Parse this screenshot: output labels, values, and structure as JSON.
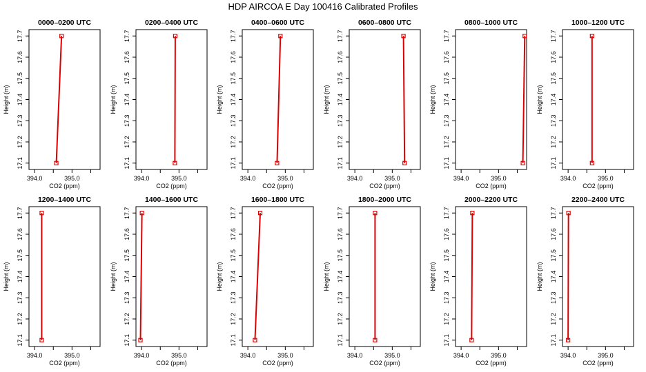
{
  "figure": {
    "title": "HDP AIRCOA E  Day 100416  Calibrated Profiles"
  },
  "colors": {
    "line": "#dd0000",
    "marker": "#dd0000",
    "axis": "#000000"
  },
  "chart_data": [
    {
      "type": "line",
      "title": "0000–0200 UTC",
      "xlabel": "CO2 (ppm)",
      "ylabel": "Height (m)",
      "xlim": [
        393.85,
        395.75
      ],
      "ylim": [
        17.07,
        17.73
      ],
      "xticks": [
        {
          "value": 394.0,
          "label": "394.0"
        },
        {
          "value": 394.5,
          "label": ""
        },
        {
          "value": 395.0,
          "label": "395.0"
        },
        {
          "value": 395.5,
          "label": ""
        }
      ],
      "yticks": [
        {
          "value": 17.1,
          "label": "17.1"
        },
        {
          "value": 17.2,
          "label": "17.2"
        },
        {
          "value": 17.3,
          "label": "17.3"
        },
        {
          "value": 17.4,
          "label": "17.4"
        },
        {
          "value": 17.5,
          "label": "17.5"
        },
        {
          "value": 17.6,
          "label": "17.6"
        },
        {
          "value": 17.7,
          "label": "17.7"
        }
      ],
      "series": [
        {
          "x": [
            394.58,
            394.72
          ],
          "y": [
            17.1,
            17.7
          ]
        }
      ]
    },
    {
      "type": "line",
      "title": "0200–0400 UTC",
      "xlabel": "CO2 (ppm)",
      "ylabel": "Height (m)",
      "xlim": [
        393.85,
        395.75
      ],
      "ylim": [
        17.07,
        17.73
      ],
      "xticks": [
        {
          "value": 394.0,
          "label": "394.0"
        },
        {
          "value": 394.5,
          "label": ""
        },
        {
          "value": 395.0,
          "label": "395.0"
        },
        {
          "value": 395.5,
          "label": ""
        }
      ],
      "yticks": [
        {
          "value": 17.1,
          "label": "17.1"
        },
        {
          "value": 17.2,
          "label": "17.2"
        },
        {
          "value": 17.3,
          "label": "17.3"
        },
        {
          "value": 17.4,
          "label": "17.4"
        },
        {
          "value": 17.5,
          "label": "17.5"
        },
        {
          "value": 17.6,
          "label": "17.6"
        },
        {
          "value": 17.7,
          "label": "17.7"
        }
      ],
      "series": [
        {
          "x": [
            394.89,
            394.9
          ],
          "y": [
            17.1,
            17.7
          ]
        }
      ]
    },
    {
      "type": "line",
      "title": "0400–0600 UTC",
      "xlabel": "CO2 (ppm)",
      "ylabel": "Height (m)",
      "xlim": [
        393.85,
        395.75
      ],
      "ylim": [
        17.07,
        17.73
      ],
      "xticks": [
        {
          "value": 394.0,
          "label": "394.0"
        },
        {
          "value": 394.5,
          "label": ""
        },
        {
          "value": 395.0,
          "label": "395.0"
        },
        {
          "value": 395.5,
          "label": ""
        }
      ],
      "yticks": [
        {
          "value": 17.1,
          "label": "17.1"
        },
        {
          "value": 17.2,
          "label": "17.2"
        },
        {
          "value": 17.3,
          "label": "17.3"
        },
        {
          "value": 17.4,
          "label": "17.4"
        },
        {
          "value": 17.5,
          "label": "17.5"
        },
        {
          "value": 17.6,
          "label": "17.6"
        },
        {
          "value": 17.7,
          "label": "17.7"
        }
      ],
      "series": [
        {
          "x": [
            394.78,
            394.87
          ],
          "y": [
            17.1,
            17.7
          ]
        }
      ]
    },
    {
      "type": "line",
      "title": "0600–0800 UTC",
      "xlabel": "CO2 (ppm)",
      "ylabel": "Height (m)",
      "xlim": [
        393.85,
        395.75
      ],
      "ylim": [
        17.07,
        17.73
      ],
      "xticks": [
        {
          "value": 394.0,
          "label": "394.0"
        },
        {
          "value": 394.5,
          "label": ""
        },
        {
          "value": 395.0,
          "label": "395.0"
        },
        {
          "value": 395.5,
          "label": ""
        }
      ],
      "yticks": [
        {
          "value": 17.1,
          "label": "17.1"
        },
        {
          "value": 17.2,
          "label": "17.2"
        },
        {
          "value": 17.3,
          "label": "17.3"
        },
        {
          "value": 17.4,
          "label": "17.4"
        },
        {
          "value": 17.5,
          "label": "17.5"
        },
        {
          "value": 17.6,
          "label": "17.6"
        },
        {
          "value": 17.7,
          "label": "17.7"
        }
      ],
      "series": [
        {
          "x": [
            395.33,
            395.3
          ],
          "y": [
            17.1,
            17.7
          ]
        }
      ]
    },
    {
      "type": "line",
      "title": "0800–1000 UTC",
      "xlabel": "CO2 (ppm)",
      "ylabel": "Height (m)",
      "xlim": [
        393.85,
        395.75
      ],
      "ylim": [
        17.07,
        17.73
      ],
      "xticks": [
        {
          "value": 394.0,
          "label": "394.0"
        },
        {
          "value": 394.5,
          "label": ""
        },
        {
          "value": 395.0,
          "label": "395.0"
        },
        {
          "value": 395.5,
          "label": ""
        }
      ],
      "yticks": [
        {
          "value": 17.1,
          "label": "17.1"
        },
        {
          "value": 17.2,
          "label": "17.2"
        },
        {
          "value": 17.3,
          "label": "17.3"
        },
        {
          "value": 17.4,
          "label": "17.4"
        },
        {
          "value": 17.5,
          "label": "17.5"
        },
        {
          "value": 17.6,
          "label": "17.6"
        },
        {
          "value": 17.7,
          "label": "17.7"
        }
      ],
      "series": [
        {
          "x": [
            395.65,
            395.7
          ],
          "y": [
            17.1,
            17.7
          ]
        }
      ]
    },
    {
      "type": "line",
      "title": "1000–1200 UTC",
      "xlabel": "CO2 (ppm)",
      "ylabel": "Height (m)",
      "xlim": [
        393.85,
        395.75
      ],
      "ylim": [
        17.07,
        17.73
      ],
      "xticks": [
        {
          "value": 394.0,
          "label": "394.0"
        },
        {
          "value": 394.5,
          "label": ""
        },
        {
          "value": 395.0,
          "label": "395.0"
        },
        {
          "value": 395.5,
          "label": ""
        }
      ],
      "yticks": [
        {
          "value": 17.1,
          "label": "17.1"
        },
        {
          "value": 17.2,
          "label": "17.2"
        },
        {
          "value": 17.3,
          "label": "17.3"
        },
        {
          "value": 17.4,
          "label": "17.4"
        },
        {
          "value": 17.5,
          "label": "17.5"
        },
        {
          "value": 17.6,
          "label": "17.6"
        },
        {
          "value": 17.7,
          "label": "17.7"
        }
      ],
      "series": [
        {
          "x": [
            394.64,
            394.64
          ],
          "y": [
            17.1,
            17.7
          ]
        }
      ]
    },
    {
      "type": "line",
      "title": "1200–1400 UTC",
      "xlabel": "CO2 (ppm)",
      "ylabel": "Height (m)",
      "xlim": [
        393.85,
        395.75
      ],
      "ylim": [
        17.07,
        17.73
      ],
      "xticks": [
        {
          "value": 394.0,
          "label": "394.0"
        },
        {
          "value": 394.5,
          "label": ""
        },
        {
          "value": 395.0,
          "label": "395.0"
        },
        {
          "value": 395.5,
          "label": ""
        }
      ],
      "yticks": [
        {
          "value": 17.1,
          "label": "17.1"
        },
        {
          "value": 17.2,
          "label": "17.2"
        },
        {
          "value": 17.3,
          "label": "17.3"
        },
        {
          "value": 17.4,
          "label": "17.4"
        },
        {
          "value": 17.5,
          "label": "17.5"
        },
        {
          "value": 17.6,
          "label": "17.6"
        },
        {
          "value": 17.7,
          "label": "17.7"
        }
      ],
      "series": [
        {
          "x": [
            394.19,
            394.19
          ],
          "y": [
            17.1,
            17.7
          ]
        }
      ]
    },
    {
      "type": "line",
      "title": "1400–1600 UTC",
      "xlabel": "CO2 (ppm)",
      "ylabel": "Height (m)",
      "xlim": [
        393.85,
        395.75
      ],
      "ylim": [
        17.07,
        17.73
      ],
      "xticks": [
        {
          "value": 394.0,
          "label": "394.0"
        },
        {
          "value": 394.5,
          "label": ""
        },
        {
          "value": 395.0,
          "label": "395.0"
        },
        {
          "value": 395.5,
          "label": ""
        }
      ],
      "yticks": [
        {
          "value": 17.1,
          "label": "17.1"
        },
        {
          "value": 17.2,
          "label": "17.2"
        },
        {
          "value": 17.3,
          "label": "17.3"
        },
        {
          "value": 17.4,
          "label": "17.4"
        },
        {
          "value": 17.5,
          "label": "17.5"
        },
        {
          "value": 17.6,
          "label": "17.6"
        },
        {
          "value": 17.7,
          "label": "17.7"
        }
      ],
      "series": [
        {
          "x": [
            393.97,
            394.01
          ],
          "y": [
            17.1,
            17.7
          ]
        }
      ]
    },
    {
      "type": "line",
      "title": "1600–1800 UTC",
      "xlabel": "CO2 (ppm)",
      "ylabel": "Height (m)",
      "xlim": [
        393.85,
        395.75
      ],
      "ylim": [
        17.07,
        17.73
      ],
      "xticks": [
        {
          "value": 394.0,
          "label": "394.0"
        },
        {
          "value": 394.5,
          "label": ""
        },
        {
          "value": 395.0,
          "label": "395.0"
        },
        {
          "value": 395.5,
          "label": ""
        }
      ],
      "yticks": [
        {
          "value": 17.1,
          "label": "17.1"
        },
        {
          "value": 17.2,
          "label": "17.2"
        },
        {
          "value": 17.3,
          "label": "17.3"
        },
        {
          "value": 17.4,
          "label": "17.4"
        },
        {
          "value": 17.5,
          "label": "17.5"
        },
        {
          "value": 17.6,
          "label": "17.6"
        },
        {
          "value": 17.7,
          "label": "17.7"
        }
      ],
      "series": [
        {
          "x": [
            394.19,
            394.33
          ],
          "y": [
            17.1,
            17.7
          ]
        }
      ]
    },
    {
      "type": "line",
      "title": "1800–2000 UTC",
      "xlabel": "CO2 (ppm)",
      "ylabel": "Height (m)",
      "xlim": [
        393.85,
        395.75
      ],
      "ylim": [
        17.07,
        17.73
      ],
      "xticks": [
        {
          "value": 394.0,
          "label": "394.0"
        },
        {
          "value": 394.5,
          "label": ""
        },
        {
          "value": 395.0,
          "label": "395.0"
        },
        {
          "value": 395.5,
          "label": ""
        }
      ],
      "yticks": [
        {
          "value": 17.1,
          "label": "17.1"
        },
        {
          "value": 17.2,
          "label": "17.2"
        },
        {
          "value": 17.3,
          "label": "17.3"
        },
        {
          "value": 17.4,
          "label": "17.4"
        },
        {
          "value": 17.5,
          "label": "17.5"
        },
        {
          "value": 17.6,
          "label": "17.6"
        },
        {
          "value": 17.7,
          "label": "17.7"
        }
      ],
      "series": [
        {
          "x": [
            394.54,
            394.54
          ],
          "y": [
            17.1,
            17.7
          ]
        }
      ]
    },
    {
      "type": "line",
      "title": "2000–2200 UTC",
      "xlabel": "CO2 (ppm)",
      "ylabel": "Height (m)",
      "xlim": [
        393.85,
        395.75
      ],
      "ylim": [
        17.07,
        17.73
      ],
      "xticks": [
        {
          "value": 394.0,
          "label": "394.0"
        },
        {
          "value": 394.5,
          "label": ""
        },
        {
          "value": 395.0,
          "label": "395.0"
        },
        {
          "value": 395.5,
          "label": ""
        }
      ],
      "yticks": [
        {
          "value": 17.1,
          "label": "17.1"
        },
        {
          "value": 17.2,
          "label": "17.2"
        },
        {
          "value": 17.3,
          "label": "17.3"
        },
        {
          "value": 17.4,
          "label": "17.4"
        },
        {
          "value": 17.5,
          "label": "17.5"
        },
        {
          "value": 17.6,
          "label": "17.6"
        },
        {
          "value": 17.7,
          "label": "17.7"
        }
      ],
      "series": [
        {
          "x": [
            394.28,
            394.3
          ],
          "y": [
            17.1,
            17.7
          ]
        }
      ]
    },
    {
      "type": "line",
      "title": "2200–2400 UTC",
      "xlabel": "CO2 (ppm)",
      "ylabel": "Height (m)",
      "xlim": [
        393.85,
        395.75
      ],
      "ylim": [
        17.07,
        17.73
      ],
      "xticks": [
        {
          "value": 394.0,
          "label": "394.0"
        },
        {
          "value": 394.5,
          "label": ""
        },
        {
          "value": 395.0,
          "label": "395.0"
        },
        {
          "value": 395.5,
          "label": ""
        }
      ],
      "yticks": [
        {
          "value": 17.1,
          "label": "17.1"
        },
        {
          "value": 17.2,
          "label": "17.2"
        },
        {
          "value": 17.3,
          "label": "17.3"
        },
        {
          "value": 17.4,
          "label": "17.4"
        },
        {
          "value": 17.5,
          "label": "17.5"
        },
        {
          "value": 17.6,
          "label": "17.6"
        },
        {
          "value": 17.7,
          "label": "17.7"
        }
      ],
      "series": [
        {
          "x": [
            394.0,
            394.01
          ],
          "y": [
            17.1,
            17.7
          ]
        }
      ]
    }
  ]
}
